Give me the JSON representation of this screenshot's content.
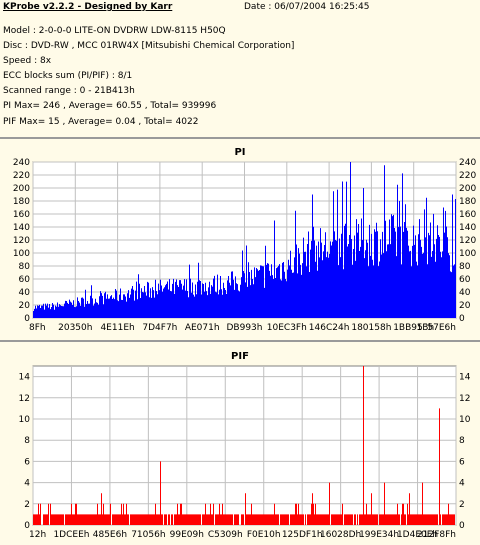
{
  "header": {
    "title": "KProbe v2.2.2 - Designed by Karr",
    "date": "Date : 06/07/2004 16:25:45",
    "lines": [
      "Model : 2-0-0-0 LITE-ON DVDRW LDW-8115   H50Q",
      "Disc : DVD-RW , MCC 01RW4X  [Mitsubishi Chemical Corporation]",
      "Speed : 8x",
      "ECC blocks sum (PI/PIF) : 8/1",
      "Scanned range : 0 - 21B413h",
      "PI Max= 246 , Average= 60.55 , Total= 939996",
      "PIF Max= 15 , Average= 0.04 , Total= 4022"
    ]
  },
  "colors": {
    "pi": "#0000ff",
    "pif": "#ff0000",
    "grid": "#c0c0c0",
    "background": "#ffffff"
  },
  "chart_data": [
    {
      "type": "bar",
      "title": "PI",
      "ylim": [
        0,
        240
      ],
      "yticks": [
        0,
        20,
        40,
        60,
        80,
        100,
        120,
        140,
        160,
        180,
        200,
        220,
        240
      ],
      "xticks": [
        "8Fh",
        "20350h",
        "4E11Eh",
        "7D4F7h",
        "AE071h",
        "DB993h",
        "10EC3Fh",
        "146C24h",
        "180158h",
        "1BB953h",
        "1F57E6h"
      ],
      "grid": true,
      "envelope": [
        [
          0,
          18
        ],
        [
          0.05,
          20
        ],
        [
          0.1,
          26
        ],
        [
          0.15,
          32
        ],
        [
          0.2,
          38
        ],
        [
          0.25,
          45
        ],
        [
          0.3,
          50
        ],
        [
          0.35,
          52
        ],
        [
          0.4,
          55
        ],
        [
          0.45,
          58
        ],
        [
          0.5,
          65
        ],
        [
          0.55,
          75
        ],
        [
          0.6,
          90
        ],
        [
          0.63,
          105
        ],
        [
          0.66,
          118
        ],
        [
          0.7,
          120
        ],
        [
          0.75,
          125
        ],
        [
          0.8,
          132
        ],
        [
          0.85,
          135
        ],
        [
          0.9,
          130
        ],
        [
          0.95,
          125
        ],
        [
          1,
          115
        ]
      ],
      "spikes": [
        [
          0.39,
          85
        ],
        [
          0.57,
          150
        ],
        [
          0.62,
          165
        ],
        [
          0.66,
          190
        ],
        [
          0.71,
          195
        ],
        [
          0.73,
          210
        ],
        [
          0.75,
          240
        ],
        [
          0.78,
          200
        ],
        [
          0.83,
          235
        ],
        [
          0.86,
          205
        ],
        [
          0.88,
          175
        ],
        [
          0.93,
          185
        ],
        [
          0.97,
          170
        ],
        [
          0.99,
          190
        ]
      ],
      "max": 246
    },
    {
      "type": "bar",
      "title": "PIF",
      "ylim": [
        0,
        15
      ],
      "yticks": [
        0,
        2,
        4,
        6,
        8,
        10,
        12,
        14
      ],
      "xticks": [
        "12h",
        "1DCEEh",
        "485E6h",
        "71056h",
        "99E09h",
        "C5309h",
        "F0E10h",
        "125DF1h",
        "16028Dh",
        "199E34h",
        "1D4E0Eh",
        "212F8Fh"
      ],
      "grid": true,
      "baseline": 1,
      "spikes": [
        [
          0.04,
          2
        ],
        [
          0.1,
          2
        ],
        [
          0.16,
          3
        ],
        [
          0.22,
          2
        ],
        [
          0.3,
          6
        ],
        [
          0.35,
          2
        ],
        [
          0.44,
          2
        ],
        [
          0.5,
          3
        ],
        [
          0.57,
          2
        ],
        [
          0.62,
          2
        ],
        [
          0.66,
          3
        ],
        [
          0.7,
          4
        ],
        [
          0.73,
          2
        ],
        [
          0.78,
          15
        ],
        [
          0.8,
          3
        ],
        [
          0.83,
          4
        ],
        [
          0.86,
          2
        ],
        [
          0.89,
          3
        ],
        [
          0.92,
          4
        ],
        [
          0.96,
          11
        ],
        [
          0.98,
          2
        ]
      ],
      "max": 15
    }
  ]
}
